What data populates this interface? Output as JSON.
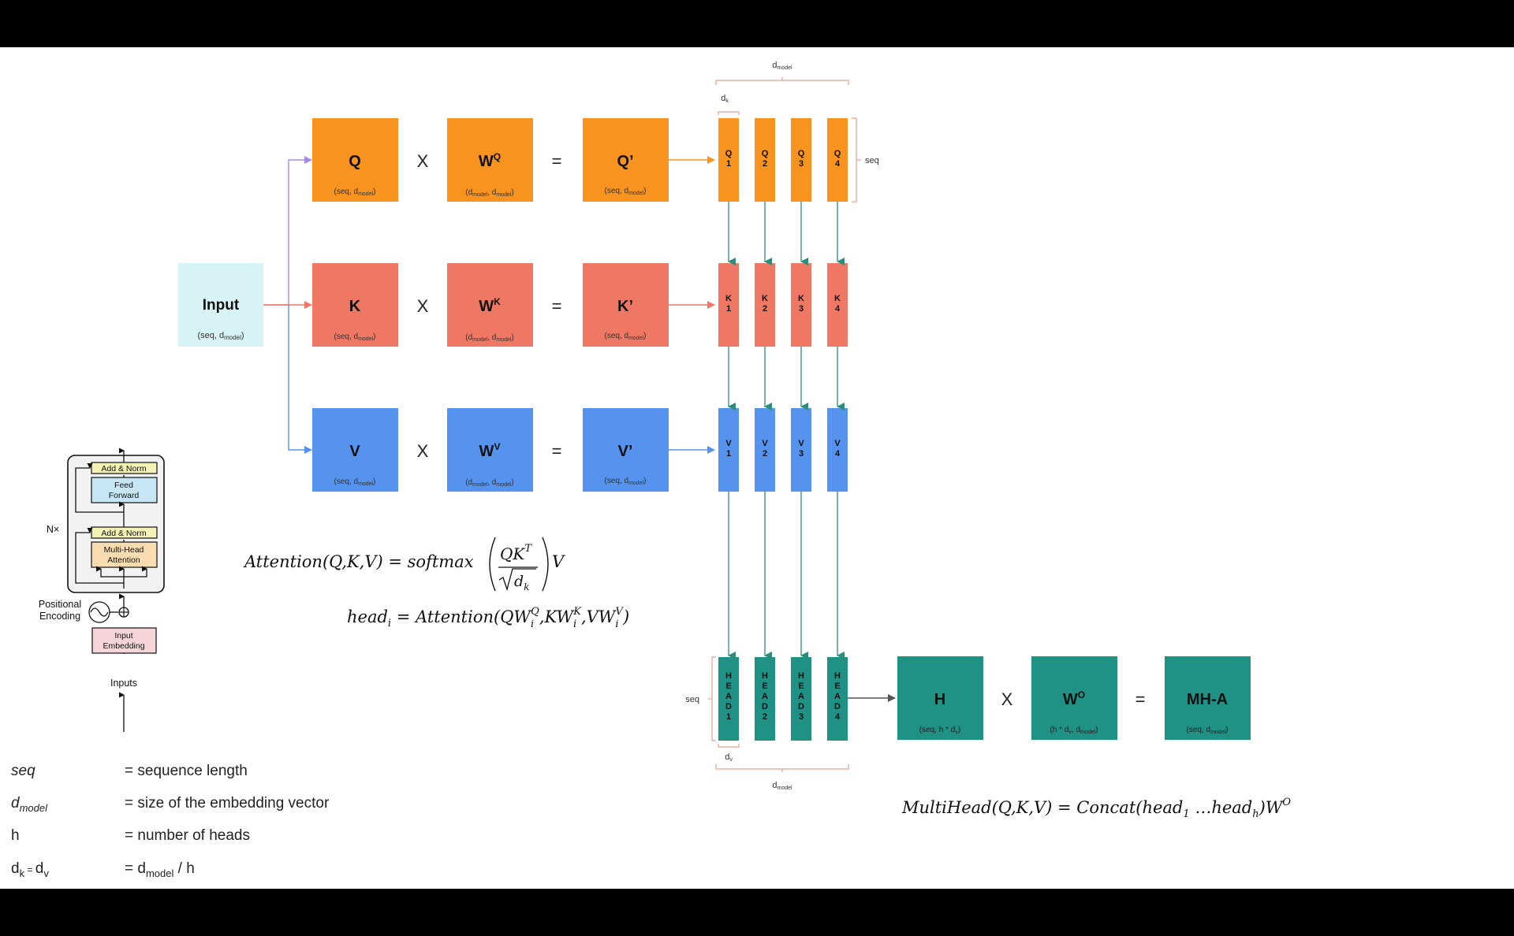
{
  "input": {
    "label": "Input",
    "sub_pre": "(seq, d",
    "sub_sub": "model",
    "sub_post": ")"
  },
  "ops": {
    "times": "X",
    "equals": "="
  },
  "q": {
    "m": "Q",
    "w": "W",
    "w_sup": "Q",
    "r": "Q’"
  },
  "k": {
    "m": "K",
    "w": "W",
    "w_sup": "K",
    "r": "K’"
  },
  "v": {
    "m": "V",
    "w": "W",
    "w_sup": "V",
    "r": "V’"
  },
  "dims": {
    "seq_dmodel_pre": "(seq, d",
    "model": "model",
    "close": ")",
    "d": "d",
    "comma": ", ",
    "dk_d": "d",
    "dk_sub": "k",
    "dv_d": "d",
    "dv_sub": "v",
    "seq": "seq",
    "h_pre": "(seq, h * d",
    "h_sub": "v",
    "h_post": ")",
    "wo_pre": "(h * d",
    "wo_sub": "v",
    "wo_mid": ", d",
    "wo_post": ")"
  },
  "split": {
    "q": [
      "Q",
      "1",
      "Q",
      "2",
      "Q",
      "3",
      "Q",
      "4"
    ],
    "k": [
      "K",
      "1",
      "K",
      "2",
      "K",
      "3",
      "K",
      "4"
    ],
    "v": [
      "V",
      "1",
      "V",
      "2",
      "V",
      "3",
      "V",
      "4"
    ],
    "head": [
      "H",
      "E",
      "A",
      "D",
      "1",
      "H",
      "E",
      "A",
      "D",
      "2",
      "H",
      "E",
      "A",
      "D",
      "3",
      "H",
      "E",
      "A",
      "D",
      "4"
    ]
  },
  "out": {
    "h": "H",
    "wo": "W",
    "wo_sup": "O",
    "mha": "MH-A"
  },
  "formulas": {
    "attention_lhs": "Attention(Q,K,V) = softmax",
    "attention_num": "QK",
    "attention_num_sup": "T",
    "attention_den": "d",
    "attention_den_sub": "k",
    "attention_v": "V",
    "head_eq": "head",
    "head_i": "i",
    "head_rhs": "= Attention(QW",
    "multihead": "MultiHead(Q,K,V) = Concat(head",
    "mh_1": "1",
    "mh_mid": " …head",
    "mh_h": "h",
    "mh_end": ")W",
    "mh_o": "O"
  },
  "transformer": {
    "add_norm_1": "Add & Norm",
    "feed_forward_1": "Feed",
    "feed_forward_2": "Forward",
    "add_norm_2": "Add & Norm",
    "mha_1": "Multi-Head",
    "mha_2": "Attention",
    "nx": "N×",
    "pos_1": "Positional",
    "pos_2": "Encoding",
    "emb_1": "Input",
    "emb_2": "Embedding",
    "inputs": "Inputs"
  },
  "legend": {
    "seq_term": "seq",
    "seq_def": "= sequence length",
    "dmodel_term": "d",
    "dmodel_sub": "model",
    "dmodel_def": "= size of the embedding vector",
    "h_term": "h",
    "h_def": "= number of heads",
    "dkdv_term_d1": "d",
    "dkdv_sub1": "k",
    "dkdv_eq": " = ",
    "dkdv_term_d2": "d",
    "dkdv_sub2": "v",
    "dkdv_def_pre": "= d",
    "dkdv_def_sub": "model",
    "dkdv_def_post": " / h"
  },
  "colors": {
    "orange": "#F7931E",
    "red": "#EE7864",
    "blue": "#5593EE",
    "teal": "#1F9185",
    "input_bg": "#D8F3F5",
    "arrow_green": "#2E8B7A"
  }
}
